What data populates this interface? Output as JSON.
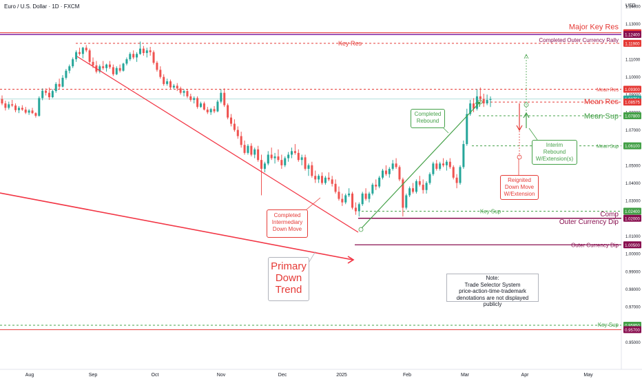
{
  "chart_data": {
    "type": "candlestick",
    "title": "Euro / U.S. Dollar · 1D · FXCM",
    "currency": "USD",
    "colors": {
      "up": "#26a69a",
      "down": "#ef5350",
      "red": "#e53935",
      "green": "#43a047",
      "purple": "#7b1fa2",
      "maroon": "#880e4f"
    },
    "ylim": [
      0.9465,
      1.1495
    ],
    "y_ticks": [
      "1.14000",
      "1.13000",
      "1.12000",
      "1.11000",
      "1.10000",
      "1.09000",
      "1.08000",
      "1.07000",
      "1.06000",
      "1.05000",
      "1.04000",
      "1.03000",
      "1.02000",
      "1.01000",
      "1.00000",
      "0.99000",
      "0.98000",
      "0.97000",
      "0.96000",
      "0.95000"
    ],
    "x_ticks": [
      "Aug",
      "Sep",
      "Oct",
      "Nov",
      "Dec",
      "2025",
      "Feb",
      "Mar",
      "Apr",
      "May"
    ],
    "price_levels": [
      {
        "value": "1.12500",
        "color": "#e53935"
      },
      {
        "value": "1.12400",
        "color": "#880e4f"
      },
      {
        "value": "1.11900",
        "color": "#e53935"
      },
      {
        "value": "1.09300",
        "color": "#e53935"
      },
      {
        "value": "1.08751",
        "color": "#26a69a"
      },
      {
        "value": "1.08575",
        "color": "#e53935"
      },
      {
        "value": "1.07800",
        "color": "#43a047"
      },
      {
        "value": "1.06100",
        "color": "#43a047"
      },
      {
        "value": "1.02400",
        "color": "#43a047"
      },
      {
        "value": "1.02000",
        "color": "#880e4f"
      },
      {
        "value": "1.00500",
        "color": "#880e4f"
      },
      {
        "value": "0.95950",
        "color": "#43a047"
      },
      {
        "value": "0.95700",
        "color": "#880e4f"
      }
    ],
    "line_labels": {
      "major_key_res": "Major Key Res",
      "key_res": "Key Res",
      "completed_outer_rally": "Completed Outer Currency Rally",
      "mean_res_small": "Mean Res",
      "mean_res": "Mean Res",
      "mean_sup": "Mean Sup",
      "mean_sup_small": "Mean Sup",
      "key_sup": "Key Sup",
      "comp": "Comp",
      "outer_currency_dip_a": "Outer Currency Dip",
      "outer_currency_dip_b": "Outer Currency Dip",
      "key_sup_bottom": "Key Sup"
    },
    "annotations": {
      "completed_rebound": [
        "Completed",
        "Rebound"
      ],
      "completed_intermediary": [
        "Completed",
        "Intermediary",
        "Down Move"
      ],
      "primary_down_trend": [
        "Primary",
        "Down",
        "Trend"
      ],
      "interim_rebound": [
        "Interim",
        "Rebound",
        "W/Extension(s)"
      ],
      "reignited_down": [
        "Reignited",
        "Down Move",
        "W/Extension"
      ],
      "note": [
        "Note:",
        "Trade Selector System",
        "price-action-time-trademark",
        "denotations are not displayed publicly"
      ]
    }
  }
}
